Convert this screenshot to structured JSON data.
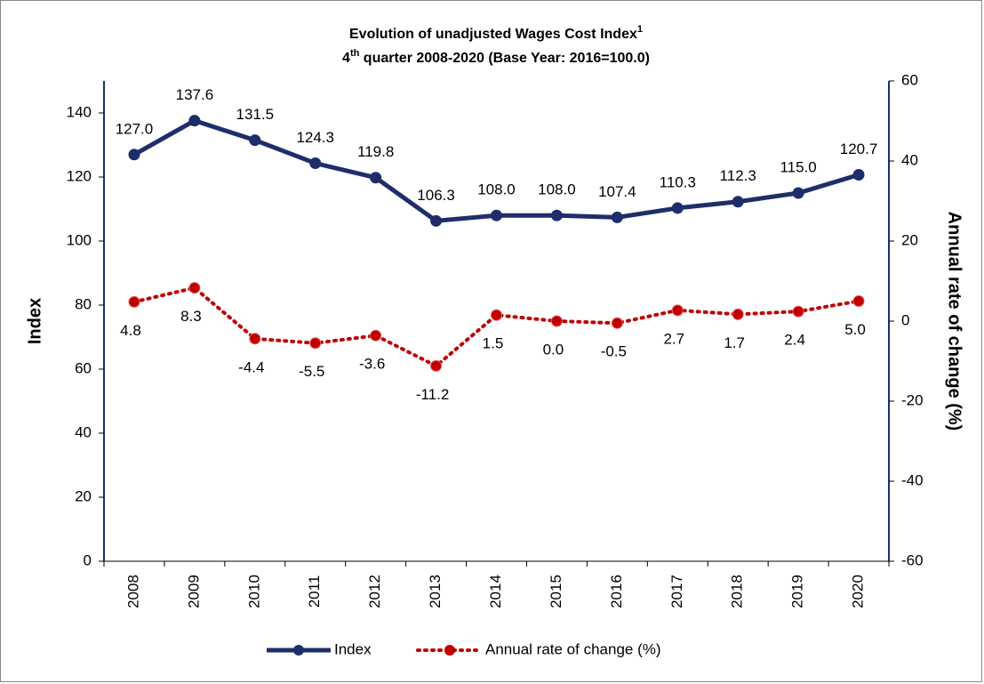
{
  "chart_data": {
    "type": "line",
    "title": "Evolution of unadjusted Wages Cost Index",
    "title_note": "1",
    "subtitle_parts": [
      "4",
      "th",
      " quarter 2008-2020 (Base Year: 2016=100.0)"
    ],
    "ylabel": "Index",
    "y2label": "Annual rate of change (%)",
    "categories": [
      "2008",
      "2009",
      "2010",
      "2011",
      "2012",
      "2013",
      "2014",
      "2015",
      "2016",
      "2017",
      "2018",
      "2019",
      "2020"
    ],
    "series": [
      {
        "name": "Index",
        "color": "#1f2d6b",
        "dashed": false,
        "values": [
          127.0,
          137.6,
          131.5,
          124.3,
          119.8,
          106.3,
          108.0,
          108.0,
          107.4,
          110.3,
          112.3,
          115.0,
          120.7
        ],
        "value_labels": [
          "127.0",
          "137.6",
          "131.5",
          "124.3",
          "119.8",
          "106.3",
          "108.0",
          "108.0",
          "107.4",
          "110.3",
          "112.3",
          "115.0",
          "120.7"
        ]
      },
      {
        "name": "Annual rate of change (%)",
        "color": "#c00000",
        "dashed": true,
        "axis": "y2",
        "values": [
          4.8,
          8.3,
          -4.4,
          -5.5,
          -3.6,
          -11.2,
          1.5,
          0.0,
          -0.5,
          2.7,
          1.7,
          2.4,
          5.0
        ],
        "value_labels": [
          "4.8",
          "8.3",
          "-4.4",
          "-5.5",
          "-3.6",
          "-11.2",
          "1.5",
          "0.0",
          "-0.5",
          "2.7",
          "1.7",
          "2.4",
          "5.0"
        ]
      }
    ],
    "ylim": [
      0,
      150
    ],
    "yticks": [
      0,
      20,
      40,
      60,
      80,
      100,
      120,
      140
    ],
    "y2lim": [
      -60,
      60
    ],
    "y2ticks": [
      -60,
      -40,
      -20,
      0,
      20,
      40,
      60
    ],
    "legend": "bottom"
  }
}
